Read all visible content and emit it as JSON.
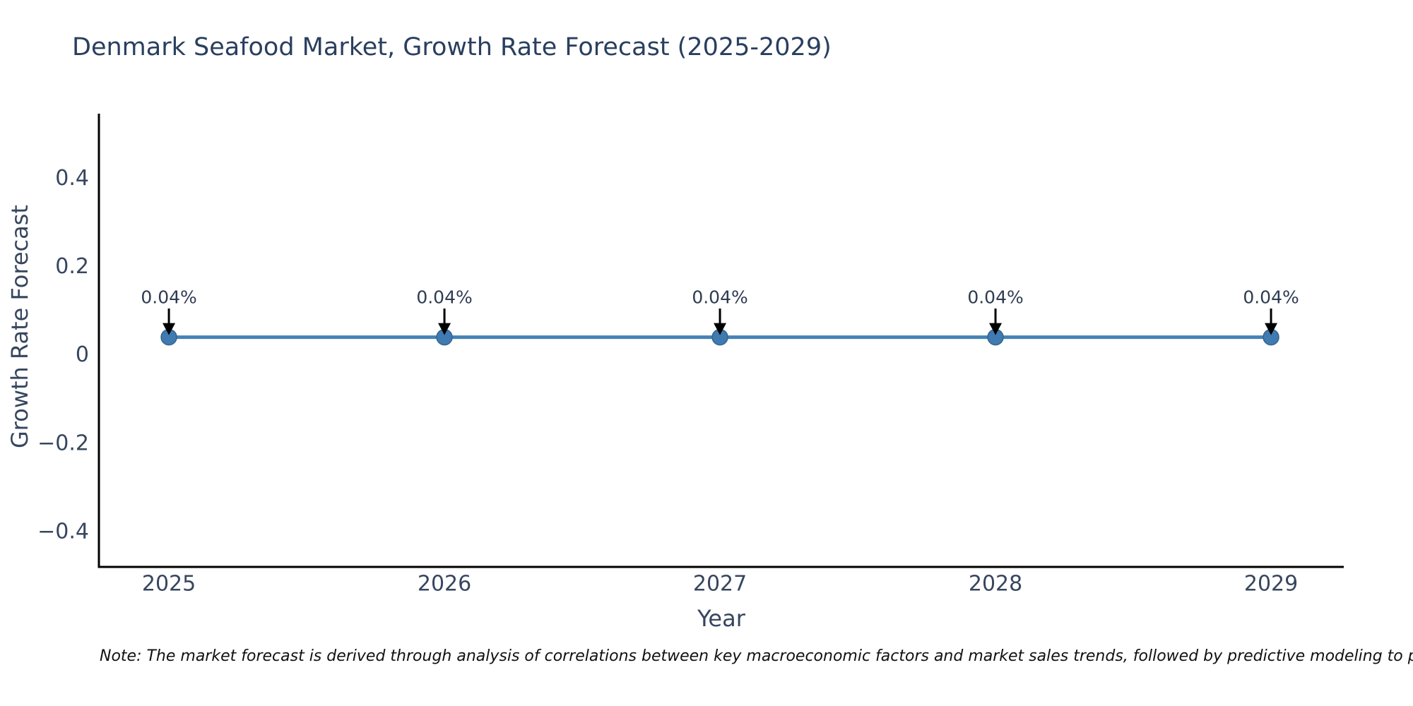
{
  "title": "Denmark Seafood Market, Growth Rate Forecast (2025-2029)",
  "note": "Note: The market forecast is derived through analysis of correlations between key macroeconomic factors and market sales trends, followed by predictive modeling to project future sa",
  "chart_data": {
    "type": "line",
    "title": "Denmark Seafood Market, Growth Rate Forecast (2025-2029)",
    "xlabel": "Year",
    "ylabel": "Growth Rate Forecast",
    "x": [
      2025,
      2026,
      2027,
      2028,
      2029
    ],
    "categories": [
      "2025",
      "2026",
      "2027",
      "2028",
      "2029"
    ],
    "values": [
      0.04,
      0.04,
      0.04,
      0.04,
      0.04
    ],
    "point_labels": [
      "0.04%",
      "0.04%",
      "0.04%",
      "0.04%",
      "0.04%"
    ],
    "yticks": [
      0.4,
      0.2,
      0,
      -0.2,
      -0.4
    ],
    "ytick_labels": [
      "0.4",
      "0.2",
      "0",
      "−0.2",
      "−0.4"
    ],
    "ylim": [
      -0.48,
      0.546
    ],
    "xlim": [
      2024.746,
      2029.264
    ],
    "grid": false,
    "legend": false,
    "annotation_arrows": true
  },
  "colors": {
    "line": "#4682b4",
    "marker_fill": "#3f7ab0",
    "marker_edge": "#35668f",
    "axis_line": "#000000",
    "tick_label": "#37465f",
    "annotation_text": "#2f3b52",
    "arrow": "#000000",
    "title": "#2a3f5f",
    "note_text": "#111111",
    "background": "#ffffff"
  }
}
